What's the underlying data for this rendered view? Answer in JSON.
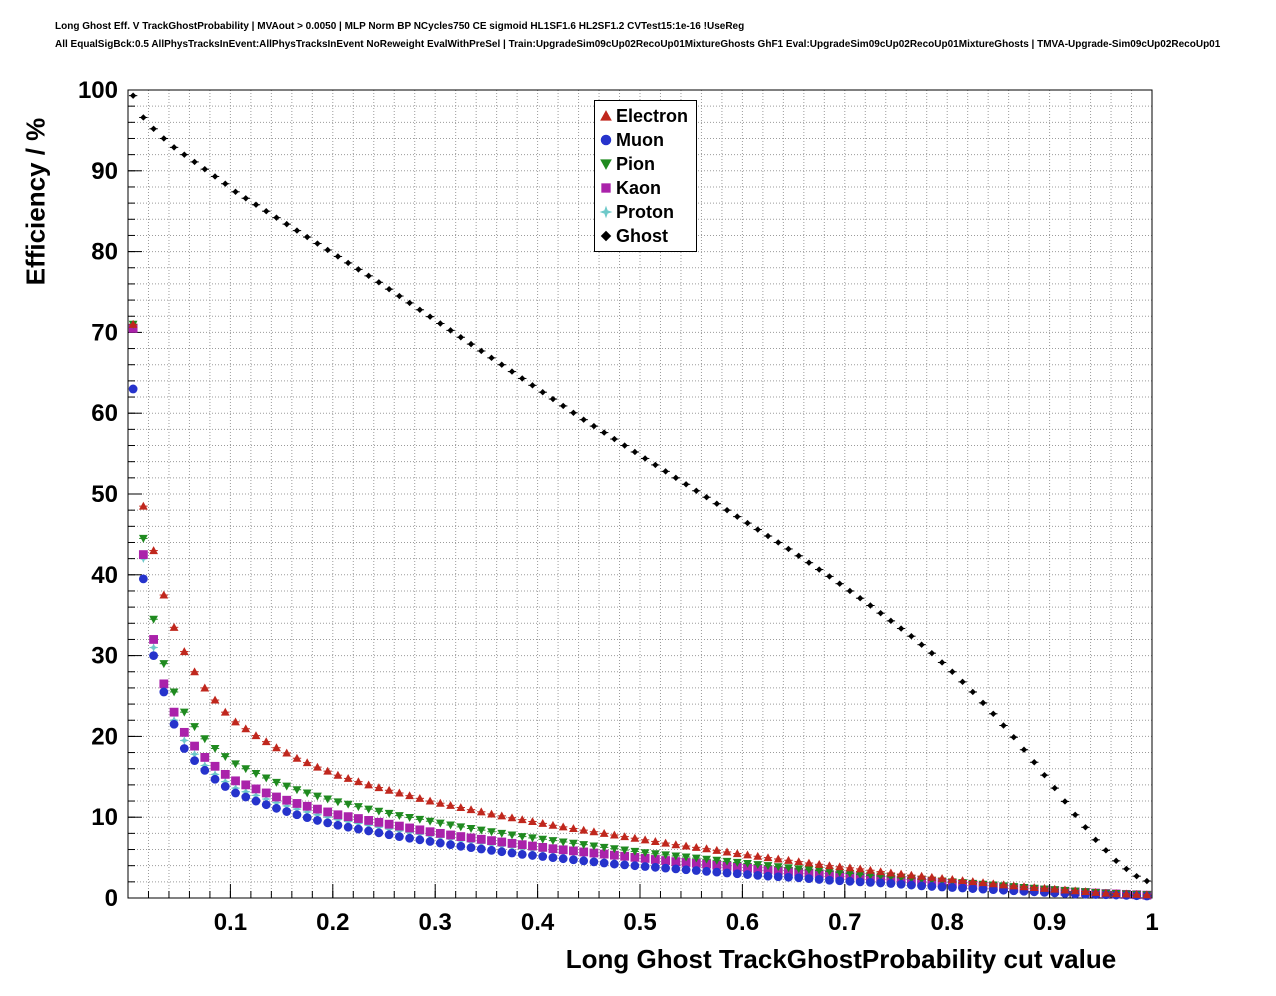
{
  "header": {
    "line1": "Long Ghost Eff. V TrackGhostProbability | MVAout > 0.0050 | MLP Norm BP NCycles750 CE sigmoid HL1SF1.6 HL2SF1.2 CVTest15:1e-16 !UseReg",
    "line2": "All EqualSigBck:0.5 AllPhysTracksInEvent:AllPhysTracksInEvent NoReweight EvalWithPreSel | Train:UpgradeSim09cUp02RecoUp01MixtureGhosts GhF1 Eval:UpgradeSim09cUp02RecoUp01MixtureGhosts | TMVA-Upgrade-Sim09cUp02RecoUp01"
  },
  "chart_data": {
    "type": "scatter",
    "title": "",
    "xlabel": "Long Ghost TrackGhostProbability cut value",
    "ylabel": "Efficiency / %",
    "xlim": [
      0,
      1
    ],
    "ylim": [
      0,
      100
    ],
    "x_ticks": [
      0.1,
      0.2,
      0.3,
      0.4,
      0.5,
      0.6,
      0.7,
      0.8,
      0.9,
      1
    ],
    "x_tick_labels": [
      "0.1",
      "0.2",
      "0.3",
      "0.4",
      "0.5",
      "0.6",
      "0.7",
      "0.8",
      "0.9",
      "1"
    ],
    "y_ticks": [
      0,
      10,
      20,
      30,
      40,
      50,
      60,
      70,
      80,
      90,
      100
    ],
    "y_tick_labels": [
      "0",
      "10",
      "20",
      "30",
      "40",
      "50",
      "60",
      "70",
      "80",
      "90",
      "100"
    ],
    "grid": "dotted minor grid, x every 0.02, y every 2",
    "grid_color": "#9b9b9b",
    "legend_position": "top-center",
    "marker_x_start": 0.005,
    "marker_x_step": 0.01,
    "marker_x_end": 0.995,
    "series": [
      {
        "name": "Electron",
        "color": "#c0271d",
        "marker": "triangle-up",
        "points": [
          [
            0.005,
            71.0
          ],
          [
            0.015,
            48.5
          ],
          [
            0.025,
            43.0
          ],
          [
            0.035,
            37.5
          ],
          [
            0.045,
            33.5
          ],
          [
            0.055,
            30.5
          ],
          [
            0.065,
            28.0
          ],
          [
            0.075,
            26.0
          ],
          [
            0.085,
            24.5
          ],
          [
            0.095,
            23.0
          ],
          [
            0.105,
            21.8
          ],
          [
            0.125,
            20.1
          ],
          [
            0.145,
            18.6
          ],
          [
            0.165,
            17.3
          ],
          [
            0.185,
            16.2
          ],
          [
            0.205,
            15.2
          ],
          [
            0.235,
            14.0
          ],
          [
            0.265,
            13.0
          ],
          [
            0.295,
            12.0
          ],
          [
            0.325,
            11.2
          ],
          [
            0.355,
            10.4
          ],
          [
            0.385,
            9.7
          ],
          [
            0.415,
            9.0
          ],
          [
            0.445,
            8.4
          ],
          [
            0.475,
            7.8
          ],
          [
            0.505,
            7.2
          ],
          [
            0.535,
            6.6
          ],
          [
            0.565,
            6.1
          ],
          [
            0.595,
            5.5
          ],
          [
            0.625,
            5.0
          ],
          [
            0.655,
            4.5
          ],
          [
            0.685,
            4.0
          ],
          [
            0.715,
            3.6
          ],
          [
            0.745,
            3.1
          ],
          [
            0.775,
            2.7
          ],
          [
            0.805,
            2.3
          ],
          [
            0.835,
            1.9
          ],
          [
            0.865,
            1.5
          ],
          [
            0.895,
            1.2
          ],
          [
            0.925,
            0.9
          ],
          [
            0.955,
            0.6
          ],
          [
            0.995,
            0.4
          ]
        ]
      },
      {
        "name": "Muon",
        "color": "#2633cc",
        "marker": "circle",
        "points": [
          [
            0.005,
            63.0
          ],
          [
            0.015,
            39.5
          ],
          [
            0.025,
            30.0
          ],
          [
            0.035,
            25.5
          ],
          [
            0.045,
            21.5
          ],
          [
            0.055,
            18.5
          ],
          [
            0.065,
            17.0
          ],
          [
            0.075,
            15.8
          ],
          [
            0.085,
            14.7
          ],
          [
            0.095,
            13.8
          ],
          [
            0.105,
            13.0
          ],
          [
            0.125,
            12.0
          ],
          [
            0.145,
            11.1
          ],
          [
            0.165,
            10.3
          ],
          [
            0.185,
            9.6
          ],
          [
            0.205,
            9.0
          ],
          [
            0.235,
            8.3
          ],
          [
            0.265,
            7.6
          ],
          [
            0.295,
            7.0
          ],
          [
            0.325,
            6.4
          ],
          [
            0.355,
            5.9
          ],
          [
            0.385,
            5.4
          ],
          [
            0.415,
            5.0
          ],
          [
            0.445,
            4.6
          ],
          [
            0.475,
            4.2
          ],
          [
            0.505,
            3.9
          ],
          [
            0.535,
            3.6
          ],
          [
            0.565,
            3.3
          ],
          [
            0.595,
            3.0
          ],
          [
            0.625,
            2.7
          ],
          [
            0.655,
            2.5
          ],
          [
            0.685,
            2.2
          ],
          [
            0.715,
            2.0
          ],
          [
            0.745,
            1.8
          ],
          [
            0.775,
            1.5
          ],
          [
            0.805,
            1.3
          ],
          [
            0.835,
            1.1
          ],
          [
            0.865,
            0.9
          ],
          [
            0.895,
            0.7
          ],
          [
            0.925,
            0.5
          ],
          [
            0.955,
            0.4
          ],
          [
            0.995,
            0.25
          ]
        ]
      },
      {
        "name": "Pion",
        "color": "#1f8a1f",
        "marker": "triangle-down",
        "points": [
          [
            0.005,
            71.0
          ],
          [
            0.015,
            44.5
          ],
          [
            0.025,
            34.5
          ],
          [
            0.035,
            29.0
          ],
          [
            0.045,
            25.5
          ],
          [
            0.055,
            23.0
          ],
          [
            0.065,
            21.2
          ],
          [
            0.075,
            19.7
          ],
          [
            0.085,
            18.5
          ],
          [
            0.095,
            17.5
          ],
          [
            0.105,
            16.6
          ],
          [
            0.125,
            15.4
          ],
          [
            0.145,
            14.3
          ],
          [
            0.165,
            13.4
          ],
          [
            0.185,
            12.6
          ],
          [
            0.205,
            11.9
          ],
          [
            0.235,
            11.0
          ],
          [
            0.265,
            10.2
          ],
          [
            0.295,
            9.5
          ],
          [
            0.325,
            8.8
          ],
          [
            0.355,
            8.2
          ],
          [
            0.385,
            7.6
          ],
          [
            0.415,
            7.1
          ],
          [
            0.445,
            6.6
          ],
          [
            0.475,
            6.1
          ],
          [
            0.505,
            5.6
          ],
          [
            0.535,
            5.2
          ],
          [
            0.565,
            4.8
          ],
          [
            0.595,
            4.4
          ],
          [
            0.625,
            4.0
          ],
          [
            0.655,
            3.6
          ],
          [
            0.685,
            3.3
          ],
          [
            0.715,
            2.9
          ],
          [
            0.745,
            2.6
          ],
          [
            0.775,
            2.3
          ],
          [
            0.805,
            2.0
          ],
          [
            0.835,
            1.7
          ],
          [
            0.865,
            1.4
          ],
          [
            0.895,
            1.1
          ],
          [
            0.925,
            0.85
          ],
          [
            0.955,
            0.6
          ],
          [
            0.995,
            0.4
          ]
        ]
      },
      {
        "name": "Kaon",
        "color": "#aa22aa",
        "marker": "square",
        "points": [
          [
            0.005,
            70.5
          ],
          [
            0.015,
            42.5
          ],
          [
            0.025,
            32.0
          ],
          [
            0.035,
            26.5
          ],
          [
            0.045,
            23.0
          ],
          [
            0.055,
            20.5
          ],
          [
            0.065,
            18.8
          ],
          [
            0.075,
            17.4
          ],
          [
            0.085,
            16.3
          ],
          [
            0.095,
            15.3
          ],
          [
            0.105,
            14.5
          ],
          [
            0.125,
            13.5
          ],
          [
            0.145,
            12.5
          ],
          [
            0.165,
            11.7
          ],
          [
            0.185,
            11.0
          ],
          [
            0.205,
            10.3
          ],
          [
            0.235,
            9.6
          ],
          [
            0.265,
            8.9
          ],
          [
            0.295,
            8.2
          ],
          [
            0.325,
            7.6
          ],
          [
            0.355,
            7.1
          ],
          [
            0.385,
            6.6
          ],
          [
            0.415,
            6.1
          ],
          [
            0.445,
            5.7
          ],
          [
            0.475,
            5.3
          ],
          [
            0.505,
            4.9
          ],
          [
            0.535,
            4.5
          ],
          [
            0.565,
            4.2
          ],
          [
            0.595,
            3.8
          ],
          [
            0.625,
            3.5
          ],
          [
            0.655,
            3.2
          ],
          [
            0.685,
            2.9
          ],
          [
            0.715,
            2.6
          ],
          [
            0.745,
            2.3
          ],
          [
            0.775,
            2.0
          ],
          [
            0.805,
            1.8
          ],
          [
            0.835,
            1.5
          ],
          [
            0.865,
            1.2
          ],
          [
            0.895,
            1.0
          ],
          [
            0.925,
            0.75
          ],
          [
            0.955,
            0.55
          ],
          [
            0.995,
            0.35
          ]
        ]
      },
      {
        "name": "Proton",
        "color": "#6ec9c9",
        "marker": "star4",
        "points": [
          [
            0.005,
            71.0
          ],
          [
            0.015,
            42.0
          ],
          [
            0.025,
            31.0
          ],
          [
            0.035,
            25.5
          ],
          [
            0.045,
            22.0
          ],
          [
            0.055,
            19.5
          ],
          [
            0.065,
            17.8
          ],
          [
            0.075,
            16.4
          ],
          [
            0.085,
            15.3
          ],
          [
            0.095,
            14.4
          ],
          [
            0.105,
            13.6
          ],
          [
            0.125,
            12.7
          ],
          [
            0.145,
            11.8
          ],
          [
            0.165,
            11.0
          ],
          [
            0.185,
            10.3
          ],
          [
            0.205,
            9.7
          ],
          [
            0.235,
            9.0
          ],
          [
            0.265,
            8.3
          ],
          [
            0.295,
            7.7
          ],
          [
            0.325,
            7.1
          ],
          [
            0.355,
            6.6
          ],
          [
            0.385,
            6.1
          ],
          [
            0.415,
            5.7
          ],
          [
            0.445,
            5.3
          ],
          [
            0.475,
            4.9
          ],
          [
            0.505,
            4.5
          ],
          [
            0.535,
            4.2
          ],
          [
            0.565,
            3.9
          ],
          [
            0.595,
            3.5
          ],
          [
            0.625,
            3.2
          ],
          [
            0.655,
            2.9
          ],
          [
            0.685,
            2.7
          ],
          [
            0.715,
            2.4
          ],
          [
            0.745,
            2.1
          ],
          [
            0.775,
            1.9
          ],
          [
            0.805,
            1.6
          ],
          [
            0.835,
            1.4
          ],
          [
            0.865,
            1.1
          ],
          [
            0.895,
            0.9
          ],
          [
            0.925,
            0.7
          ],
          [
            0.955,
            0.5
          ],
          [
            0.995,
            0.3
          ]
        ]
      },
      {
        "name": "Ghost",
        "color": "#000000",
        "marker": "diamond",
        "points": [
          [
            0.005,
            99.3
          ],
          [
            0.015,
            96.6
          ],
          [
            0.025,
            95.2
          ],
          [
            0.035,
            94.0
          ],
          [
            0.045,
            92.9
          ],
          [
            0.055,
            92.0
          ],
          [
            0.065,
            91.1
          ],
          [
            0.075,
            90.2
          ],
          [
            0.085,
            89.3
          ],
          [
            0.095,
            88.4
          ],
          [
            0.105,
            87.4
          ],
          [
            0.125,
            85.8
          ],
          [
            0.145,
            84.2
          ],
          [
            0.165,
            82.6
          ],
          [
            0.185,
            81.0
          ],
          [
            0.205,
            79.4
          ],
          [
            0.225,
            77.8
          ],
          [
            0.245,
            76.2
          ],
          [
            0.265,
            74.5
          ],
          [
            0.285,
            72.8
          ],
          [
            0.305,
            71.1
          ],
          [
            0.325,
            69.4
          ],
          [
            0.345,
            67.7
          ],
          [
            0.365,
            66.0
          ],
          [
            0.385,
            64.3
          ],
          [
            0.405,
            62.6
          ],
          [
            0.425,
            60.9
          ],
          [
            0.445,
            59.2
          ],
          [
            0.465,
            57.6
          ],
          [
            0.485,
            56.0
          ],
          [
            0.505,
            54.4
          ],
          [
            0.525,
            52.8
          ],
          [
            0.545,
            51.2
          ],
          [
            0.565,
            49.6
          ],
          [
            0.585,
            48.0
          ],
          [
            0.605,
            46.4
          ],
          [
            0.625,
            44.8
          ],
          [
            0.645,
            43.2
          ],
          [
            0.665,
            41.5
          ],
          [
            0.685,
            39.8
          ],
          [
            0.705,
            38.0
          ],
          [
            0.725,
            36.2
          ],
          [
            0.745,
            34.3
          ],
          [
            0.765,
            32.4
          ],
          [
            0.785,
            30.3
          ],
          [
            0.805,
            28.0
          ],
          [
            0.825,
            25.5
          ],
          [
            0.845,
            22.8
          ],
          [
            0.865,
            19.9
          ],
          [
            0.885,
            16.8
          ],
          [
            0.905,
            13.6
          ],
          [
            0.925,
            10.3
          ],
          [
            0.945,
            7.2
          ],
          [
            0.965,
            4.6
          ],
          [
            0.975,
            3.6
          ],
          [
            0.985,
            2.7
          ],
          [
            0.995,
            2.1
          ]
        ]
      }
    ]
  }
}
